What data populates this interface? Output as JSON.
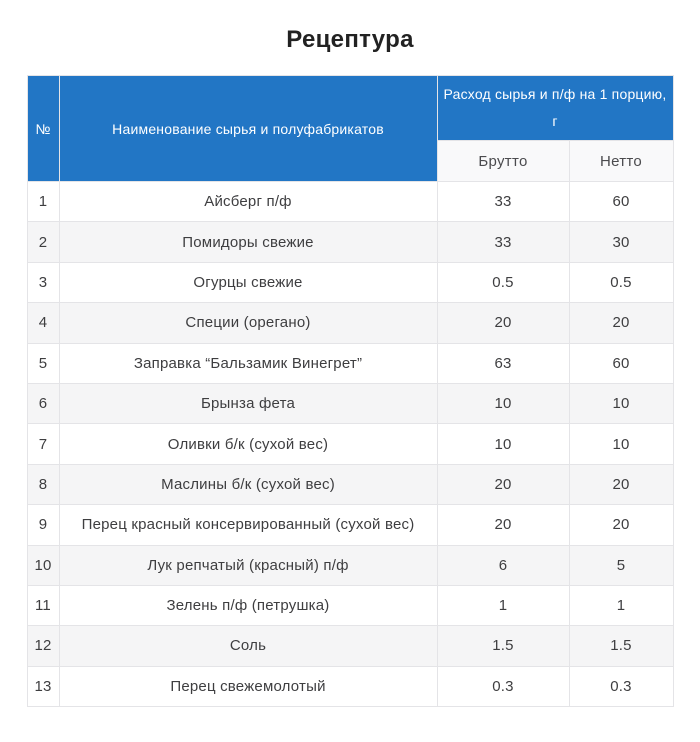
{
  "page_title": "Рецептура",
  "colors": {
    "accent_blue": "#2276c5",
    "subheader_bg": "#f9f9fa",
    "stripe_bg": "#f5f5f6",
    "border": "#e4e4e7",
    "body_text": "#3e3e40",
    "subheader_text": "#4b4b4e",
    "title_text": "#222222",
    "header_text": "#ffffff"
  },
  "table": {
    "headers": {
      "num": "№",
      "name": "Наименование сырья и полуфабрикатов",
      "consumption": "Расход сырья и п/ф на 1 порцию, г",
      "brutto": "Брутто",
      "netto": "Нетто"
    },
    "rows": [
      {
        "num": "1",
        "name": "Айсберг п/ф",
        "brutto": "33",
        "netto": "60"
      },
      {
        "num": "2",
        "name": "Помидоры свежие",
        "brutto": "33",
        "netto": "30"
      },
      {
        "num": "3",
        "name": "Огурцы свежие",
        "brutto": "0.5",
        "netto": "0.5"
      },
      {
        "num": "4",
        "name": "Специи (орегано)",
        "brutto": "20",
        "netto": "20"
      },
      {
        "num": "5",
        "name": "Заправка “Бальзамик Винегрет”",
        "brutto": "63",
        "netto": "60"
      },
      {
        "num": "6",
        "name": "Брынза фета",
        "brutto": "10",
        "netto": "10"
      },
      {
        "num": "7",
        "name": "Оливки б/к (сухой вес)",
        "brutto": "10",
        "netto": "10"
      },
      {
        "num": "8",
        "name": "Маслины б/к (сухой вес)",
        "brutto": "20",
        "netto": "20"
      },
      {
        "num": "9",
        "name": "Перец красный консервированный (сухой вес)",
        "brutto": "20",
        "netto": "20"
      },
      {
        "num": "10",
        "name": "Лук репчатый (красный) п/ф",
        "brutto": "6",
        "netto": "5"
      },
      {
        "num": "11",
        "name": "Зелень п/ф (петрушка)",
        "brutto": "1",
        "netto": "1"
      },
      {
        "num": "12",
        "name": "Соль",
        "brutto": "1.5",
        "netto": "1.5"
      },
      {
        "num": "13",
        "name": "Перец свежемолотый",
        "brutto": "0.3",
        "netto": "0.3"
      }
    ]
  }
}
